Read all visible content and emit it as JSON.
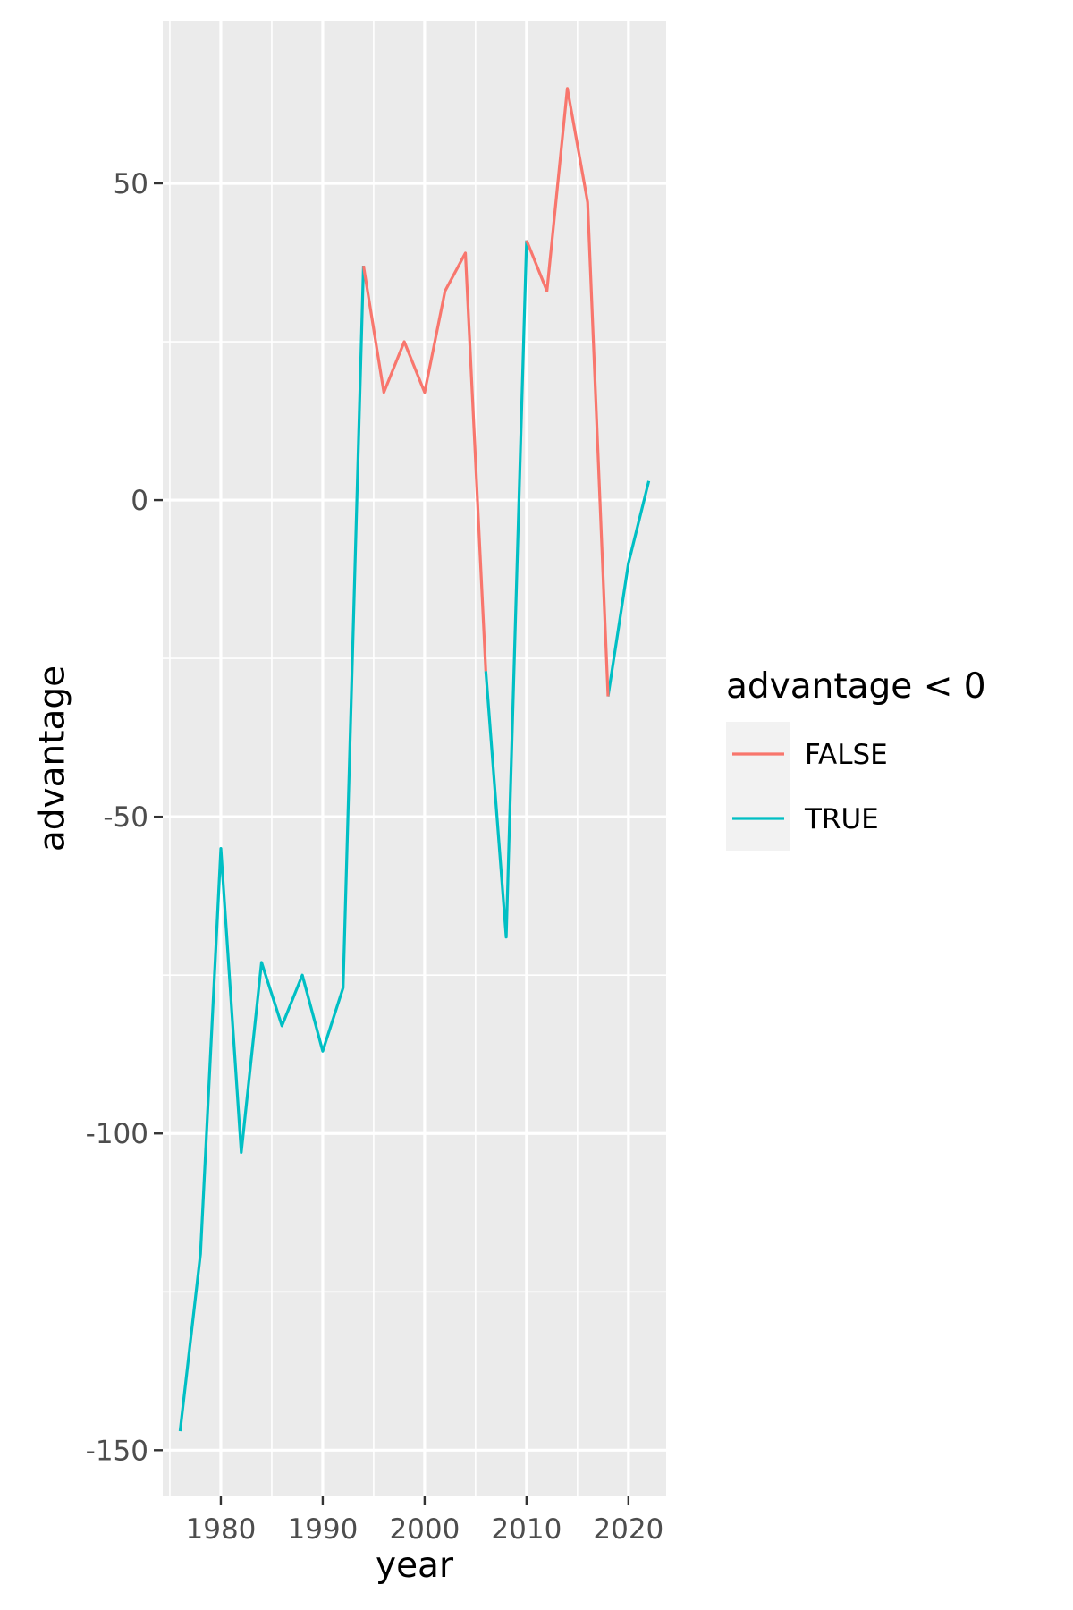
{
  "chart_data": {
    "type": "line",
    "title": "",
    "xlabel": "year",
    "ylabel": "advantage",
    "xlim": [
      1974.3,
      2023.7
    ],
    "ylim": [
      -157.3,
      75.7
    ],
    "x_ticks": [
      1980,
      1990,
      2000,
      2010,
      2020
    ],
    "y_ticks": [
      50,
      0,
      -50,
      -100,
      -150
    ],
    "y_tick_labels": [
      "50",
      "0",
      "-50",
      "-100",
      "-150"
    ],
    "grid": true,
    "background": "#ebebeb",
    "legend": {
      "title": "advantage < 0",
      "position": "right",
      "entries": [
        {
          "label": "FALSE",
          "color": "#f8766d"
        },
        {
          "label": "TRUE",
          "color": "#00bfc4"
        }
      ]
    },
    "series": [
      {
        "name": "TRUE",
        "color": "#00bfc4",
        "segments": [
          {
            "x": [
              1976,
              1978,
              1980,
              1982,
              1984,
              1986,
              1988,
              1990,
              1992,
              1994
            ],
            "y": [
              -147,
              -119,
              -55,
              -103,
              -73,
              -83,
              -75,
              -87,
              -77,
              37
            ]
          },
          {
            "x": [
              2006,
              2008,
              2010
            ],
            "y": [
              -27,
              -69,
              41
            ]
          },
          {
            "x": [
              2018,
              2020,
              2022
            ],
            "y": [
              -31,
              -10,
              3
            ]
          }
        ]
      },
      {
        "name": "FALSE",
        "color": "#f8766d",
        "segments": [
          {
            "x": [
              1994,
              1996,
              1998,
              2000,
              2002,
              2004,
              2006
            ],
            "y": [
              37,
              17,
              25,
              17,
              33,
              39,
              -27
            ]
          },
          {
            "x": [
              2010,
              2012,
              2014,
              2016,
              2018
            ],
            "y": [
              41,
              33,
              65,
              47,
              -31
            ]
          }
        ]
      }
    ]
  }
}
